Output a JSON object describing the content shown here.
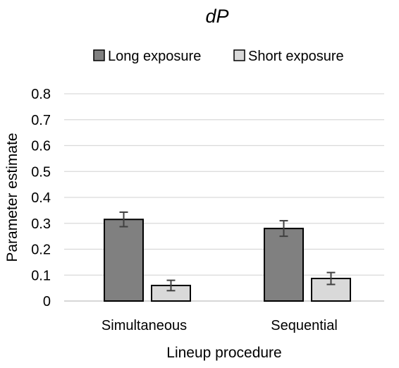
{
  "chart_data": {
    "type": "bar",
    "title": "dP",
    "xlabel": "Lineup procedure",
    "ylabel": "Parameter estimate",
    "categories": [
      "Simultaneous",
      "Sequential"
    ],
    "series": [
      {
        "name": "Long exposure",
        "color": "#808080",
        "values": [
          0.315,
          0.28
        ],
        "errors": [
          0.028,
          0.03
        ]
      },
      {
        "name": "Short exposure",
        "color": "#d9d9d9",
        "values": [
          0.06,
          0.087
        ],
        "errors": [
          0.02,
          0.023
        ]
      }
    ],
    "ylim": [
      0,
      0.8
    ],
    "yticks": [
      "0",
      "0.1",
      "0.2",
      "0.3",
      "0.4",
      "0.5",
      "0.6",
      "0.7",
      "0.8"
    ],
    "grid": true,
    "legend_position": "top"
  }
}
